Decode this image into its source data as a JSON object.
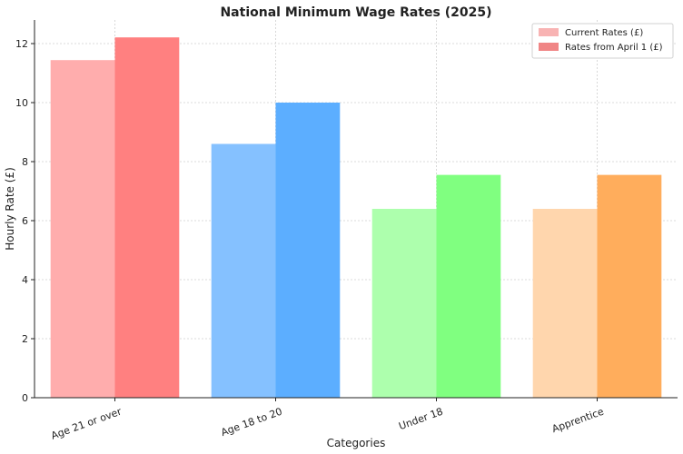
{
  "chart_data": {
    "type": "bar",
    "title": "National Minimum Wage Rates (2025)",
    "xlabel": "Categories",
    "ylabel": "Hourly Rate (£)",
    "ylim": [
      0,
      12.8
    ],
    "yticks": [
      0,
      2,
      4,
      6,
      8,
      10,
      12
    ],
    "grid": true,
    "legend_position": "top-right",
    "categories": [
      "Age 21 or over",
      "Age 18 to 20",
      "Under 18",
      "Apprentice"
    ],
    "series": [
      {
        "name": "Current Rates (£)",
        "values": [
          11.44,
          8.6,
          6.4,
          6.4
        ],
        "colors": [
          "#ffadad",
          "#85c1ff",
          "#adffad",
          "#ffd6ad"
        ]
      },
      {
        "name": "Rates from April 1 (£)",
        "values": [
          12.21,
          10.0,
          7.55,
          7.55
        ],
        "colors": [
          "#ff8080",
          "#5caeff",
          "#80ff80",
          "#ffad5c"
        ]
      }
    ],
    "legend_colors": [
      "#f8b3b3",
      "#f08585"
    ]
  }
}
